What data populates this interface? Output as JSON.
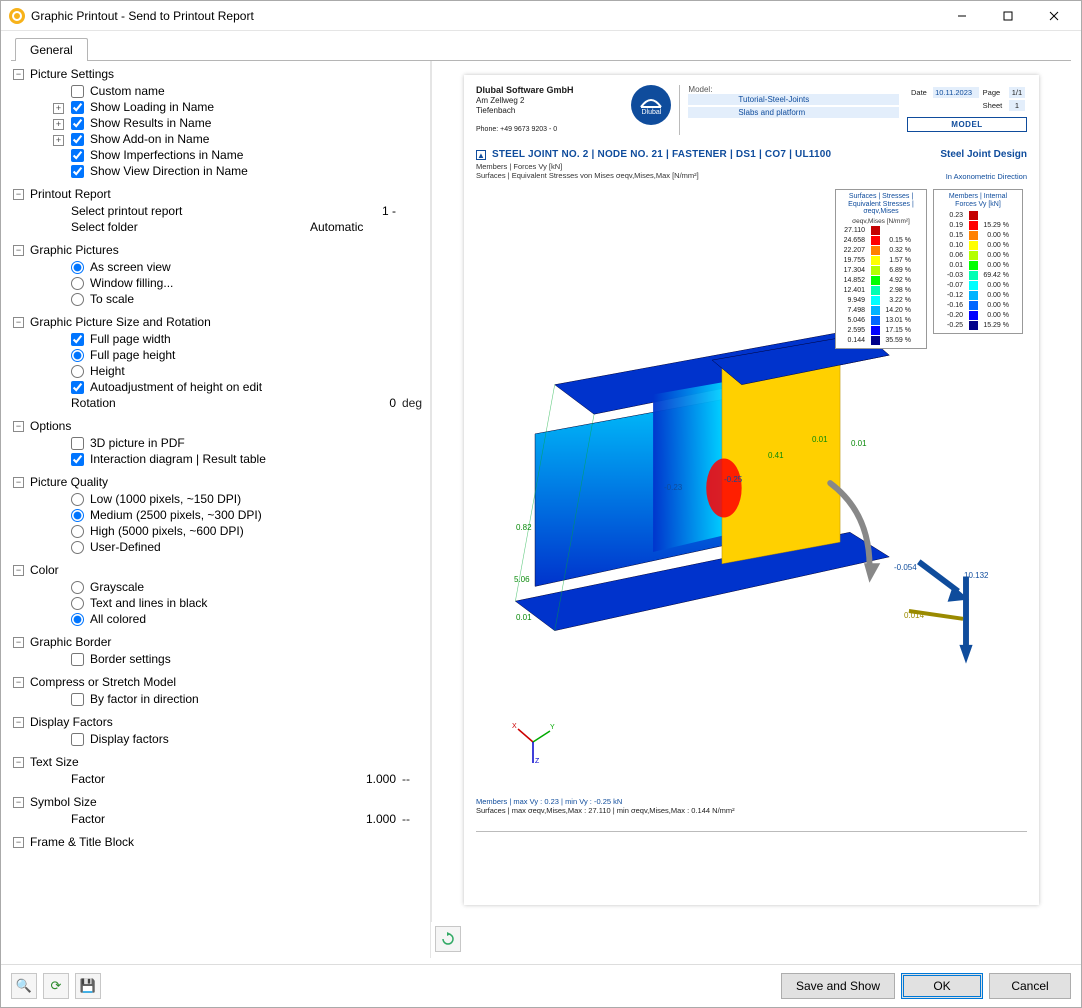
{
  "window": {
    "title": "Graphic Printout - Send to Printout Report"
  },
  "tab": "General",
  "sections": {
    "pictureSettings": {
      "title": "Picture Settings",
      "items": {
        "customName": "Custom name",
        "showLoading": "Show Loading in Name",
        "showResults": "Show Results in Name",
        "showAddon": "Show Add-on in Name",
        "showImperfections": "Show Imperfections in Name",
        "showViewDirection": "Show View Direction in Name"
      }
    },
    "printoutReport": {
      "title": "Printout Report",
      "selectPrintout": "Select printout report",
      "selectPrintoutVal": "1 -",
      "selectFolder": "Select folder",
      "selectFolderVal": "Automatic"
    },
    "graphicPictures": {
      "title": "Graphic Pictures",
      "asScreen": "As screen view",
      "windowFilling": "Window filling...",
      "toScale": "To scale"
    },
    "sizeRotation": {
      "title": "Graphic Picture Size and Rotation",
      "fullWidth": "Full page width",
      "fullHeight": "Full page height",
      "height": "Height",
      "autoAdjust": "Autoadjustment of height on edit",
      "rotation": "Rotation",
      "rotationVal": "0",
      "rotationUnit": "deg"
    },
    "options": {
      "title": "Options",
      "threeD": "3D picture in PDF",
      "interaction": "Interaction diagram | Result table"
    },
    "pictureQuality": {
      "title": "Picture Quality",
      "low": "Low (1000 pixels, ~150 DPI)",
      "medium": "Medium (2500 pixels, ~300 DPI)",
      "high": "High (5000 pixels, ~600 DPI)",
      "user": "User-Defined"
    },
    "color": {
      "title": "Color",
      "grayscale": "Grayscale",
      "textLines": "Text and lines in black",
      "allColored": "All colored"
    },
    "graphicBorder": {
      "title": "Graphic Border",
      "borderSettings": "Border settings"
    },
    "compress": {
      "title": "Compress or Stretch Model",
      "byFactor": "By factor in direction"
    },
    "displayFactors": {
      "title": "Display Factors",
      "displayFactors": "Display factors"
    },
    "textSize": {
      "title": "Text Size",
      "factor": "Factor",
      "val": "1.000",
      "unit": "--"
    },
    "symbolSize": {
      "title": "Symbol Size",
      "factor": "Factor",
      "val": "1.000",
      "unit": "--"
    },
    "frame": {
      "title": "Frame & Title Block"
    }
  },
  "footer": {
    "saveShow": "Save and Show",
    "ok": "OK",
    "cancel": "Cancel"
  },
  "preview": {
    "company": {
      "name": "Dlubal Software GmbH",
      "l1": "Am Zellweg 2",
      "l2": "Tiefenbach",
      "phone": "Phone: +49 9673 9203 - 0"
    },
    "model": {
      "kModel": "Model:",
      "vModel": "Tutorial-Steel-Joints",
      "kSlabs": "Slabs and platform"
    },
    "meta": {
      "date": "Date",
      "dateVal": "10.11.2023",
      "page": "Page",
      "pageVal": "1/1",
      "sheet": "Sheet",
      "sheetVal": "1",
      "modelWord": "MODEL"
    },
    "title": "STEEL JOINT NO. 2 | NODE NO. 21 | FASTENER | DS1 | CO7 | UL1100",
    "sideTitle": "Steel Joint Design",
    "sub1a": "Members | Forces Vy [kN]",
    "sub1b": "Surfaces | Equivalent Stresses von Mises σeqv,Mises,Max [N/mm²]",
    "sub2": "In Axonometric Direction",
    "legend1": {
      "title": "Surfaces | Stresses | Equivalent Stresses | σeqv,Mises",
      "unit": "σeqv,Mises [N/mm²]",
      "rows": [
        {
          "v": "27.110",
          "p": "",
          "c": "#c40000"
        },
        {
          "v": "24.658",
          "p": "0.15 %",
          "c": "#ff0000"
        },
        {
          "v": "22.207",
          "p": "0.32 %",
          "c": "#ff8000"
        },
        {
          "v": "19.755",
          "p": "1.57 %",
          "c": "#ffff00"
        },
        {
          "v": "17.304",
          "p": "6.89 %",
          "c": "#b3ff00"
        },
        {
          "v": "14.852",
          "p": "4.92 %",
          "c": "#00ff00"
        },
        {
          "v": "12.401",
          "p": "2.98 %",
          "c": "#00ffb3"
        },
        {
          "v": "9.949",
          "p": "3.22 %",
          "c": "#00ffff"
        },
        {
          "v": "7.498",
          "p": "14.20 %",
          "c": "#00b3ff"
        },
        {
          "v": "5.046",
          "p": "13.01 %",
          "c": "#0066ff"
        },
        {
          "v": "2.595",
          "p": "17.15 %",
          "c": "#0000ff"
        },
        {
          "v": "0.144",
          "p": "35.59 %",
          "c": "#00008b"
        }
      ]
    },
    "legend2": {
      "title": "Members | Internal Forces Vy [kN]",
      "rows": [
        {
          "v": "0.23",
          "p": "",
          "c": "#c40000"
        },
        {
          "v": "0.19",
          "p": "15.29 %",
          "c": "#ff0000"
        },
        {
          "v": "0.15",
          "p": "0.00 %",
          "c": "#ff8000"
        },
        {
          "v": "0.10",
          "p": "0.00 %",
          "c": "#ffff00"
        },
        {
          "v": "0.06",
          "p": "0.00 %",
          "c": "#b3ff00"
        },
        {
          "v": "0.01",
          "p": "0.00 %",
          "c": "#00ff00"
        },
        {
          "v": "-0.03",
          "p": "69.42 %",
          "c": "#00ffb3"
        },
        {
          "v": "-0.07",
          "p": "0.00 %",
          "c": "#00ffff"
        },
        {
          "v": "-0.12",
          "p": "0.00 %",
          "c": "#00b3ff"
        },
        {
          "v": "-0.16",
          "p": "0.00 %",
          "c": "#0066ff"
        },
        {
          "v": "-0.20",
          "p": "0.00 %",
          "c": "#0000ff"
        },
        {
          "v": "-0.25",
          "p": "15.29 %",
          "c": "#00008b"
        }
      ]
    },
    "figLabels": {
      "a": "0.82",
      "b": "5.06",
      "c": "0.01",
      "d": "0.41",
      "e": "-0.25",
      "f": "-0.23",
      "g": "0.01",
      "h": "0.01",
      "i": "0.01",
      "j": "0.01",
      "k": "-0.054",
      "l": "0.014",
      "m": "10.132"
    },
    "notes": {
      "l1": "Members | max Vy : 0.23 | min Vy : -0.25 kN",
      "l2": "Surfaces | max σeqv,Mises,Max : 27.110 | min σeqv,Mises,Max : 0.144 N/mm²"
    }
  }
}
